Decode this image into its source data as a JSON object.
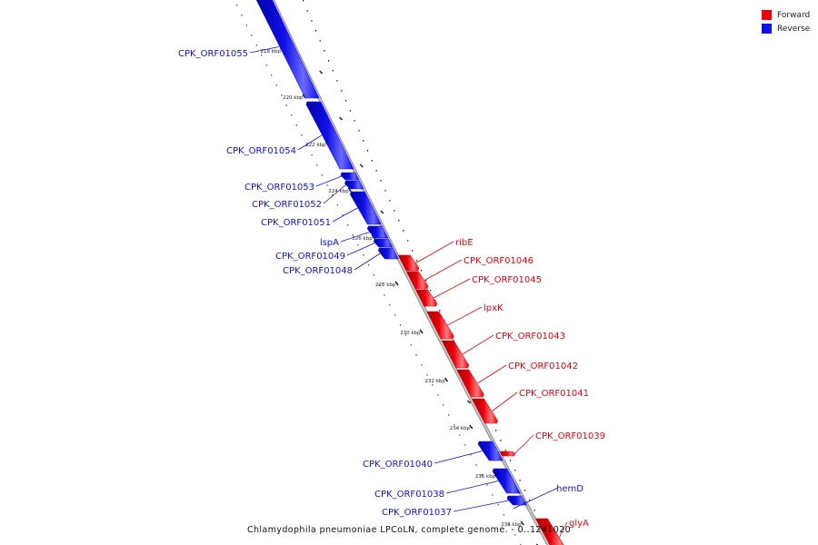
{
  "legend": [
    {
      "label": "Forward",
      "color": "#e8000b"
    },
    {
      "label": "Reverse",
      "color": "#1010e8"
    }
  ],
  "caption": "Chlamydophila pneumoniae LPCoLN, complete genome. - 0..1241020",
  "colors": {
    "forward": "#e8000b",
    "reverse": "#1010e8",
    "backbone": "#9a9a9a",
    "tick": "#222222"
  },
  "tick_labels": [
    "218 kbp",
    "220 kbp",
    "222 kbp",
    "224 kbp",
    "226 kbp",
    "228 kbp",
    "230 kbp",
    "232 kbp",
    "234 kbp",
    "236 kbp",
    "238 kbp"
  ],
  "genes": [
    {
      "name": "CPK_ORF01055",
      "strand": "reverse"
    },
    {
      "name": "CPK_ORF01054",
      "strand": "reverse"
    },
    {
      "name": "CPK_ORF01053",
      "strand": "reverse"
    },
    {
      "name": "CPK_ORF01052",
      "strand": "reverse"
    },
    {
      "name": "CPK_ORF01051",
      "strand": "reverse"
    },
    {
      "name": "lspA",
      "strand": "reverse"
    },
    {
      "name": "CPK_ORF01049",
      "strand": "reverse"
    },
    {
      "name": "CPK_ORF01048",
      "strand": "reverse"
    },
    {
      "name": "ribE",
      "strand": "forward"
    },
    {
      "name": "CPK_ORF01046",
      "strand": "forward"
    },
    {
      "name": "CPK_ORF01045",
      "strand": "forward"
    },
    {
      "name": "lpxK",
      "strand": "forward"
    },
    {
      "name": "CPK_ORF01043",
      "strand": "forward"
    },
    {
      "name": "CPK_ORF01042",
      "strand": "forward"
    },
    {
      "name": "CPK_ORF01041",
      "strand": "forward"
    },
    {
      "name": "CPK_ORF01039",
      "strand": "forward"
    },
    {
      "name": "CPK_ORF01040",
      "strand": "reverse"
    },
    {
      "name": "hemD",
      "strand": "reverse"
    },
    {
      "name": "CPK_ORF01038",
      "strand": "reverse"
    },
    {
      "name": "CPK_ORF01037",
      "strand": "reverse"
    },
    {
      "name": "glyA",
      "strand": "forward"
    }
  ]
}
